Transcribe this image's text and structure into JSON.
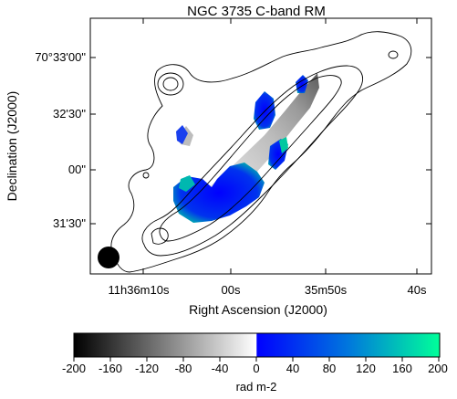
{
  "title": "NGC 3735   C-band   RM",
  "axes": {
    "xlabel": "Right Ascension (J2000)",
    "ylabel": "Declination (J2000)",
    "xticks": [
      "11h36m10s",
      "00s",
      "35m50s",
      "40s"
    ],
    "yticks": [
      "70°33'00\"",
      "32'30\"",
      "00\"",
      "31'30\""
    ]
  },
  "colorbar": {
    "label": "rad m-2",
    "ticks": [
      "-200",
      "-160",
      "-120",
      "-80",
      "-40",
      "0",
      "40",
      "80",
      "120",
      "160",
      "200"
    ],
    "range": [
      -200,
      200
    ],
    "colors": {
      "min": "#000000",
      "zero_low": "#ffffff",
      "zero_high": "#0000ff",
      "max": "#00ff99"
    }
  },
  "colors": {
    "background": "#ffffff",
    "frame": "#000000",
    "contour": "#000000",
    "beam": "#000000"
  }
}
